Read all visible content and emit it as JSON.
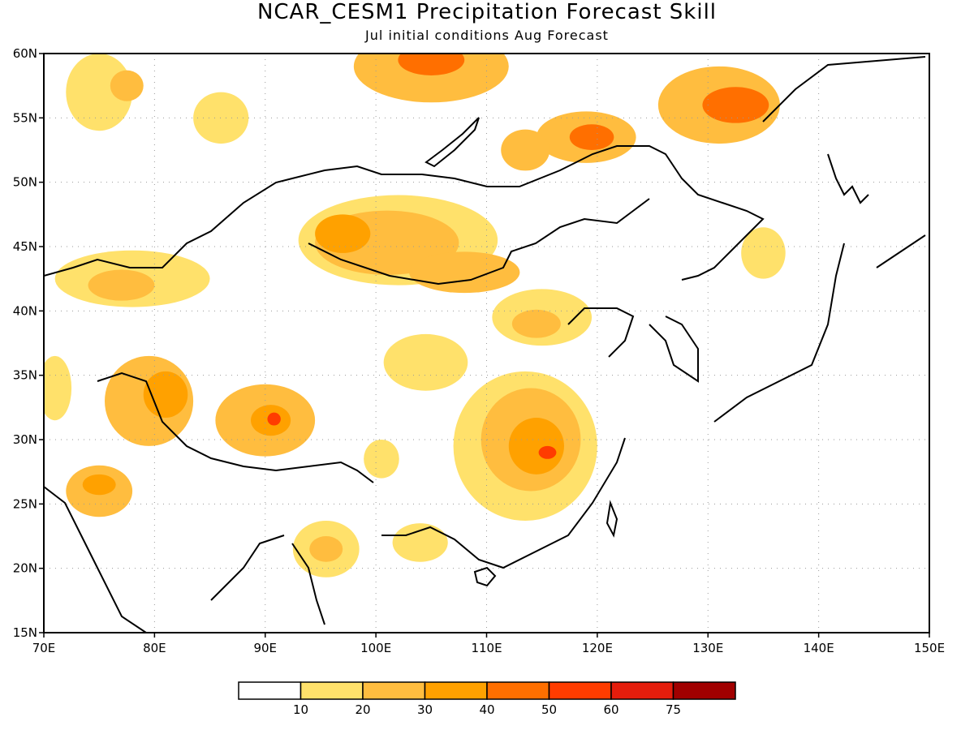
{
  "title": "NCAR_CESM1 Precipitation Forecast Skill",
  "subtitle": "Jul initial conditions  Aug Forecast",
  "map": {
    "lon_range": [
      70,
      150
    ],
    "lat_range": [
      15,
      60
    ],
    "lon_ticks": [
      {
        "value": 70,
        "label": "70E"
      },
      {
        "value": 80,
        "label": "80E"
      },
      {
        "value": 90,
        "label": "90E"
      },
      {
        "value": 100,
        "label": "100E"
      },
      {
        "value": 110,
        "label": "110E"
      },
      {
        "value": 120,
        "label": "120E"
      },
      {
        "value": 130,
        "label": "130E"
      },
      {
        "value": 140,
        "label": "140E"
      },
      {
        "value": 150,
        "label": "150E"
      }
    ],
    "lat_ticks": [
      {
        "value": 15,
        "label": "15N"
      },
      {
        "value": 20,
        "label": "20N"
      },
      {
        "value": 25,
        "label": "25N"
      },
      {
        "value": 30,
        "label": "30N"
      },
      {
        "value": 35,
        "label": "35N"
      },
      {
        "value": 40,
        "label": "40N"
      },
      {
        "value": 45,
        "label": "45N"
      },
      {
        "value": 50,
        "label": "50N"
      },
      {
        "value": 55,
        "label": "55N"
      },
      {
        "value": 60,
        "label": "60N"
      }
    ],
    "grid": true,
    "skill_regions": [
      {
        "lon": 75,
        "lat": 57,
        "rx": 3,
        "ry": 3,
        "level": 1
      },
      {
        "lon": 77.5,
        "lat": 57.5,
        "rx": 1.5,
        "ry": 1.2,
        "level": 2
      },
      {
        "lon": 86,
        "lat": 55,
        "rx": 2.5,
        "ry": 2,
        "level": 1
      },
      {
        "lon": 105,
        "lat": 59,
        "rx": 7,
        "ry": 2.8,
        "level": 2
      },
      {
        "lon": 105,
        "lat": 59.5,
        "rx": 3,
        "ry": 1.2,
        "level": 4
      },
      {
        "lon": 119,
        "lat": 53.5,
        "rx": 4.5,
        "ry": 2,
        "level": 2
      },
      {
        "lon": 119.5,
        "lat": 53.5,
        "rx": 2,
        "ry": 1,
        "level": 4
      },
      {
        "lon": 131,
        "lat": 56,
        "rx": 5.5,
        "ry": 3,
        "level": 2
      },
      {
        "lon": 132.5,
        "lat": 56,
        "rx": 3,
        "ry": 1.4,
        "level": 4
      },
      {
        "lon": 113.5,
        "lat": 52.5,
        "rx": 2.2,
        "ry": 1.6,
        "level": 2
      },
      {
        "lon": 102,
        "lat": 45.5,
        "rx": 9,
        "ry": 3.5,
        "level": 1
      },
      {
        "lon": 101,
        "lat": 45.3,
        "rx": 6.5,
        "ry": 2.5,
        "level": 2
      },
      {
        "lon": 97,
        "lat": 46,
        "rx": 2.5,
        "ry": 1.5,
        "level": 3
      },
      {
        "lon": 108,
        "lat": 43,
        "rx": 5,
        "ry": 1.6,
        "level": 2
      },
      {
        "lon": 78,
        "lat": 42.5,
        "rx": 7,
        "ry": 2.2,
        "level": 1
      },
      {
        "lon": 77,
        "lat": 42,
        "rx": 3,
        "ry": 1.2,
        "level": 2
      },
      {
        "lon": 115,
        "lat": 39.5,
        "rx": 4.5,
        "ry": 2.2,
        "level": 1
      },
      {
        "lon": 114.5,
        "lat": 39,
        "rx": 2.2,
        "ry": 1.1,
        "level": 2
      },
      {
        "lon": 104.5,
        "lat": 36,
        "rx": 3.8,
        "ry": 2.2,
        "level": 1
      },
      {
        "lon": 79.5,
        "lat": 33,
        "rx": 4,
        "ry": 3.5,
        "level": 2
      },
      {
        "lon": 81,
        "lat": 33.5,
        "rx": 2,
        "ry": 1.8,
        "level": 3
      },
      {
        "lon": 90,
        "lat": 31.5,
        "rx": 4.5,
        "ry": 2.8,
        "level": 2
      },
      {
        "lon": 90.5,
        "lat": 31.5,
        "rx": 1.8,
        "ry": 1.2,
        "level": 3
      },
      {
        "lon": 90.8,
        "lat": 31.6,
        "rx": 0.6,
        "ry": 0.5,
        "level": 5
      },
      {
        "lon": 113.5,
        "lat": 29.5,
        "rx": 6.5,
        "ry": 5.8,
        "level": 1
      },
      {
        "lon": 114,
        "lat": 30,
        "rx": 4.5,
        "ry": 4,
        "level": 2
      },
      {
        "lon": 114.5,
        "lat": 29.5,
        "rx": 2.5,
        "ry": 2.2,
        "level": 3
      },
      {
        "lon": 115.5,
        "lat": 29,
        "rx": 0.8,
        "ry": 0.5,
        "level": 5
      },
      {
        "lon": 75,
        "lat": 26,
        "rx": 3,
        "ry": 2,
        "level": 2
      },
      {
        "lon": 75,
        "lat": 26.5,
        "rx": 1.5,
        "ry": 0.8,
        "level": 3
      },
      {
        "lon": 95.5,
        "lat": 21.5,
        "rx": 3,
        "ry": 2.2,
        "level": 1
      },
      {
        "lon": 95.5,
        "lat": 21.5,
        "rx": 1.5,
        "ry": 1,
        "level": 2
      },
      {
        "lon": 100.5,
        "lat": 28.5,
        "rx": 1.6,
        "ry": 1.5,
        "level": 1
      },
      {
        "lon": 104,
        "lat": 22,
        "rx": 2.5,
        "ry": 1.5,
        "level": 1
      },
      {
        "lon": 71,
        "lat": 34,
        "rx": 1.5,
        "ry": 2.5,
        "level": 1
      },
      {
        "lon": 135,
        "lat": 44.5,
        "rx": 2,
        "ry": 2,
        "level": 1
      }
    ]
  },
  "colorbar": {
    "colors": [
      "#ffffff",
      "#ffe16b",
      "#ffbd3f",
      "#ffa100",
      "#ff6f00",
      "#ff3c00",
      "#e51d0c",
      "#a10000"
    ],
    "labels": [
      "10",
      "20",
      "30",
      "40",
      "50",
      "60",
      "75"
    ]
  }
}
